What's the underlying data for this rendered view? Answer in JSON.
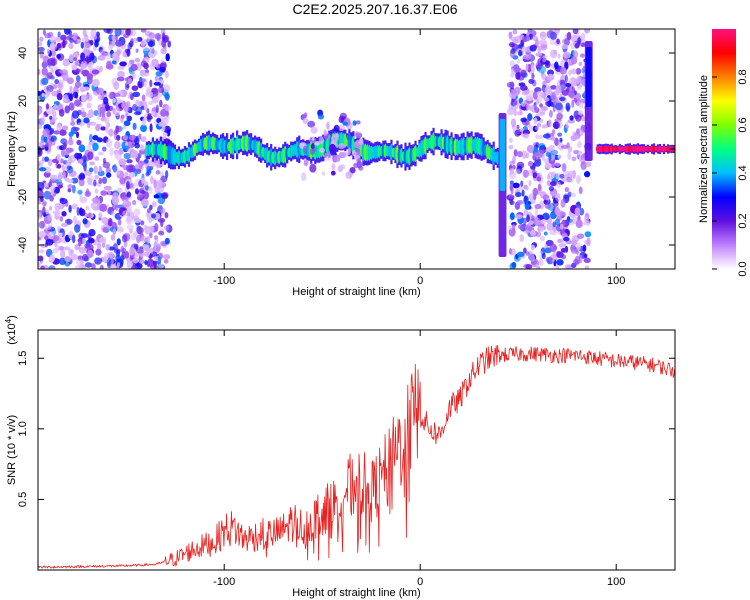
{
  "title": "C2E2.2025.207.16.37.E06",
  "colors": {
    "snr_line": "#e8201f",
    "colormap": [
      "#ffffff",
      "#c080ff",
      "#6010e0",
      "#0000ff",
      "#00c0ff",
      "#00ff80",
      "#80ff00",
      "#ffff00",
      "#ff8000",
      "#ff0000",
      "#ff1080"
    ]
  },
  "chart_data": [
    {
      "type": "heatmap",
      "title": "",
      "xlabel": "Height of straight line (km)",
      "ylabel": "Frequency (Hz)",
      "xlim": [
        -195,
        130
      ],
      "ylim": [
        -50,
        50
      ],
      "x_ticks": [
        -100,
        0,
        100
      ],
      "x_tick_labels": [
        "-100",
        "0",
        "100"
      ],
      "y_ticks": [
        -40,
        -20,
        0,
        20,
        40
      ],
      "y_tick_labels": [
        "-40",
        "-20",
        "0",
        "20",
        "40"
      ],
      "colorbar": {
        "label": "Normalized spectral amplitude",
        "range": [
          0,
          1
        ],
        "ticks": [
          0.0,
          0.2,
          0.4,
          0.6,
          0.8
        ],
        "tick_labels": [
          "0.0",
          "0.2",
          "0.4",
          "0.6",
          "0.8"
        ]
      },
      "regions": [
        {
          "x_range": [
            -195,
            -128
          ],
          "freq_range": [
            -50,
            50
          ],
          "amplitude": 0.15,
          "pattern": "scattered noise"
        },
        {
          "x_range": [
            -140,
            40
          ],
          "freq_center": 0,
          "freq_halfwidth": 5,
          "amplitude": 0.5,
          "pattern": "narrow band"
        },
        {
          "x_range": [
            -60,
            -30
          ],
          "freq_range": [
            -12,
            15
          ],
          "amplitude": 0.15,
          "pattern": "spread"
        },
        {
          "x_range": [
            40,
            44
          ],
          "freq_range": [
            -45,
            15
          ],
          "amplitude": 0.4,
          "pattern": "vertical streak"
        },
        {
          "x_range": [
            46,
            86
          ],
          "freq_range": [
            -50,
            50
          ],
          "amplitude": 0.15,
          "pattern": "scattered noise"
        },
        {
          "x_range": [
            84,
            88
          ],
          "freq_range": [
            -5,
            45
          ],
          "amplitude": 0.3,
          "pattern": "vertical streak"
        },
        {
          "x_range": [
            90,
            130
          ],
          "freq_center": 0,
          "freq_halfwidth": 2,
          "amplitude": 0.95,
          "pattern": "narrow band"
        }
      ]
    },
    {
      "type": "line",
      "title": "",
      "xlabel": "Height of straight line (km)",
      "ylabel": "SNR (10 * v/v)",
      "y_multiplier_label": "(x10",
      "y_multiplier_exp": "4",
      "xlim": [
        -195,
        130
      ],
      "ylim": [
        0,
        17000
      ],
      "x_ticks": [
        -100,
        0,
        100
      ],
      "x_tick_labels": [
        "-100",
        "0",
        "100"
      ],
      "y_ticks": [
        5000,
        10000,
        15000
      ],
      "y_tick_labels": [
        "0.5",
        "1.0",
        "1.5"
      ],
      "grid": false,
      "series": [
        {
          "x": [
            -195,
            -170,
            -150,
            -135,
            -125,
            -115,
            -105,
            -100,
            -95,
            -90,
            -85,
            -80,
            -75,
            -70,
            -65,
            -60,
            -55,
            -50,
            -45,
            -40,
            -35,
            -30,
            -25,
            -20,
            -15,
            -10,
            -5,
            0,
            5,
            10,
            15,
            20,
            25,
            30,
            35,
            40,
            50,
            60,
            70,
            80,
            90,
            100,
            110,
            120,
            130
          ],
          "y": [
            200,
            250,
            300,
            400,
            800,
            1500,
            2000,
            2800,
            3000,
            2200,
            2400,
            2600,
            2500,
            2800,
            3500,
            3000,
            3500,
            4200,
            4500,
            5500,
            6000,
            6200,
            5500,
            6500,
            7500,
            9000,
            10500,
            11000,
            10000,
            9500,
            11500,
            12000,
            13500,
            14500,
            15000,
            15200,
            15300,
            15300,
            15200,
            15200,
            15000,
            14800,
            14700,
            14500,
            14100
          ]
        }
      ]
    }
  ]
}
